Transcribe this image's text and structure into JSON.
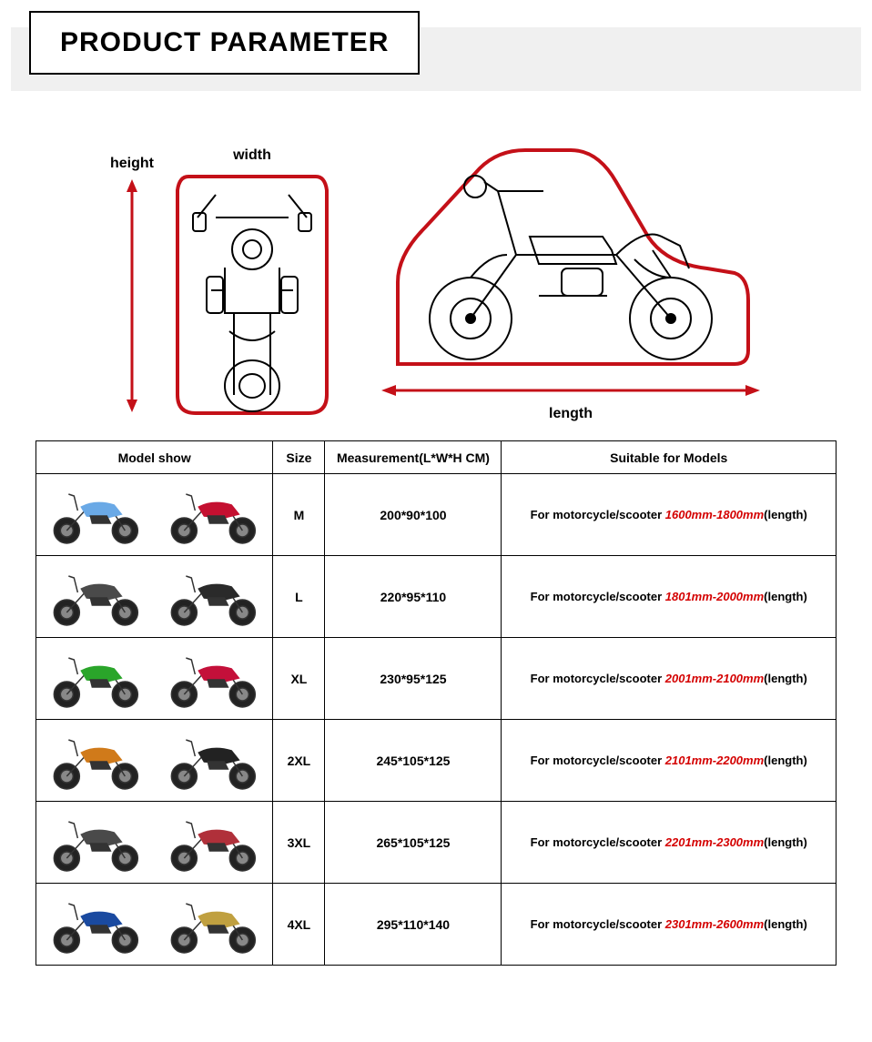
{
  "header": {
    "title": "PRODUCT PARAMETER"
  },
  "diagram": {
    "width_label": "width",
    "height_label": "height",
    "length_label": "length",
    "outline_color": "#c41018",
    "stroke": "#000000",
    "arrow_color": "#c41018"
  },
  "table": {
    "columns": [
      "Model show",
      "Size",
      "Measurement(L*W*H CM)",
      "Suitable for Models"
    ],
    "suitable_prefix": "For motorcycle/scooter ",
    "suitable_suffix": "(length)",
    "rows": [
      {
        "size": "M",
        "measurement": "200*90*100",
        "range": "1600mm-1800mm",
        "model_colors": [
          "#6aa9e6",
          "#c41030"
        ]
      },
      {
        "size": "L",
        "measurement": "220*95*110",
        "range": "1801mm-2000mm",
        "model_colors": [
          "#4a4a4a",
          "#2a2a2a"
        ]
      },
      {
        "size": "XL",
        "measurement": "230*95*125",
        "range": "2001mm-2100mm",
        "model_colors": [
          "#2aa52a",
          "#c4103a"
        ]
      },
      {
        "size": "2XL",
        "measurement": "245*105*125",
        "range": "2101mm-2200mm",
        "model_colors": [
          "#d07a1a",
          "#222222"
        ]
      },
      {
        "size": "3XL",
        "measurement": "265*105*125",
        "range": "2201mm-2300mm",
        "model_colors": [
          "#4a4a4a",
          "#b0303a"
        ]
      },
      {
        "size": "4XL",
        "measurement": "295*110*140",
        "range": "2301mm-2600mm",
        "model_colors": [
          "#1a4aa0",
          "#c0a040"
        ]
      }
    ]
  },
  "colors": {
    "background": "#ffffff",
    "header_band": "#f0f0f0",
    "text": "#000000",
    "highlight": "#d40000"
  }
}
